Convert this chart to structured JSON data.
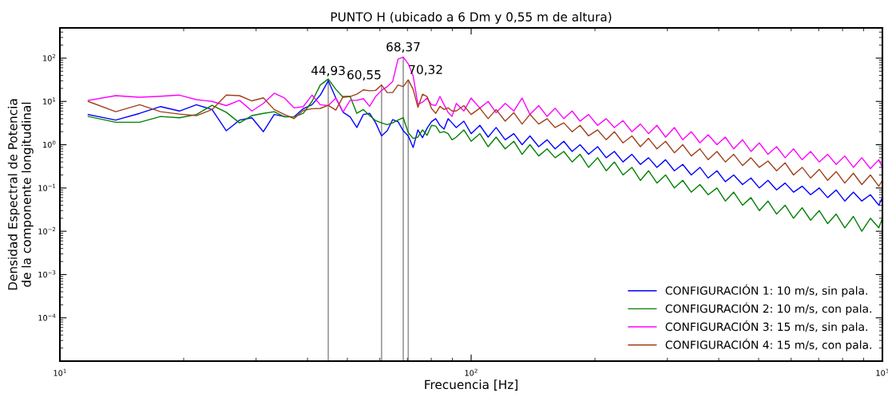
{
  "chart_data": {
    "type": "line",
    "title": "PUNTO H (ubicado a 6 Dm y 0,55 m de altura)",
    "xlabel": "Frecuencia [Hz]",
    "ylabel": "Densidad Espectral de Potencia\nde la componente longitudinal",
    "log": "xy",
    "grid": false,
    "legend": "bottom right",
    "marker": "none",
    "line_style": "solid",
    "xlim": [
      10,
      1000
    ],
    "ylim": [
      1e-05,
      500
    ],
    "xticks": [
      {
        "value": 10,
        "label": "10$^{1}$"
      },
      {
        "value": 100,
        "label": "10$^{2}$"
      },
      {
        "value": 1000,
        "label": "10$^{3}$"
      }
    ],
    "yticks": [
      {
        "value": 0.0001,
        "label": "10$^{−4}$"
      },
      {
        "value": 0.001,
        "label": "10$^{−3}$"
      },
      {
        "value": 0.01,
        "label": "10$^{−2}$"
      },
      {
        "value": 0.1,
        "label": "10$^{−1}$"
      },
      {
        "value": 1,
        "label": "10$^{0}$"
      },
      {
        "value": 10,
        "label": "10$^{1}$"
      },
      {
        "value": 100,
        "label": "10$^{2}$"
      }
    ],
    "x": [
      11.72,
      13.67,
      15.63,
      17.58,
      19.53,
      21.48,
      23.44,
      25.39,
      27.34,
      29.3,
      31.25,
      33.2,
      35.16,
      37.11,
      39.06,
      41.02,
      42.97,
      44.93,
      46.88,
      48.83,
      50.78,
      52.73,
      54.69,
      56.64,
      58.59,
      60.55,
      62.5,
      64.45,
      66.41,
      68.37,
      70.32,
      72.27,
      74.22,
      76.17,
      78.13,
      80.08,
      82.03,
      83.98,
      85.94,
      87.89,
      89.84,
      92,
      96,
      100,
      105,
      110,
      115,
      121,
      127,
      133,
      139,
      146,
      153,
      160,
      168,
      176,
      184,
      193,
      203,
      213,
      223,
      234,
      246,
      258,
      270,
      283,
      297,
      312,
      327,
      343,
      360,
      377,
      396,
      415,
      435,
      457,
      479,
      502,
      527,
      553,
      580,
      608,
      638,
      669,
      702,
      736,
      772,
      810,
      850,
      891,
      935,
      980,
      1000
    ],
    "series": [
      {
        "name": "CONFIGURACIÓN 1: 10 m/s, sin pala.",
        "color": "#0000ff",
        "values": [
          5,
          3.7,
          5.3,
          7.6,
          6,
          8.4,
          6.5,
          2.1,
          3.7,
          4.2,
          2,
          5,
          4.5,
          4.4,
          6.8,
          8.4,
          14,
          30,
          12,
          5.6,
          4.4,
          2.5,
          5,
          5.3,
          3.2,
          1.6,
          2.1,
          3.8,
          3.4,
          2.1,
          1.6,
          0.86,
          2.2,
          1.45,
          2.4,
          3.4,
          4,
          2.8,
          2.3,
          4,
          3.2,
          2.5,
          3.5,
          1.8,
          2.8,
          1.5,
          2.5,
          1.3,
          1.8,
          1,
          1.6,
          0.9,
          1.3,
          0.8,
          1.2,
          0.7,
          1,
          0.6,
          0.9,
          0.5,
          0.7,
          0.4,
          0.6,
          0.35,
          0.5,
          0.3,
          0.45,
          0.25,
          0.35,
          0.2,
          0.3,
          0.17,
          0.25,
          0.14,
          0.2,
          0.12,
          0.17,
          0.1,
          0.15,
          0.09,
          0.13,
          0.08,
          0.11,
          0.07,
          0.1,
          0.06,
          0.09,
          0.05,
          0.08,
          0.05,
          0.07,
          0.04,
          0.06
        ]
      },
      {
        "name": "CONFIGURACIÓN 2: 10 m/s, con pala.",
        "color": "#008000",
        "values": [
          4.5,
          3.3,
          3.3,
          4.5,
          4.2,
          5,
          8.1,
          5.6,
          3.2,
          4.7,
          5.3,
          5.8,
          4.4,
          4.4,
          5.3,
          10,
          24,
          33,
          19,
          12.5,
          13,
          5.3,
          6.5,
          4.7,
          3.6,
          3.2,
          2.9,
          3.2,
          3.7,
          4.2,
          1.9,
          1.4,
          1.5,
          2.2,
          1.65,
          2.8,
          2.7,
          1.9,
          2,
          1.8,
          1.3,
          1.5,
          2.2,
          1.2,
          1.8,
          0.9,
          1.5,
          0.8,
          1.2,
          0.6,
          1,
          0.55,
          0.8,
          0.5,
          0.7,
          0.4,
          0.6,
          0.3,
          0.5,
          0.25,
          0.4,
          0.2,
          0.3,
          0.15,
          0.25,
          0.13,
          0.2,
          0.1,
          0.15,
          0.08,
          0.12,
          0.07,
          0.1,
          0.05,
          0.08,
          0.04,
          0.06,
          0.03,
          0.05,
          0.025,
          0.04,
          0.02,
          0.035,
          0.018,
          0.03,
          0.015,
          0.025,
          0.012,
          0.022,
          0.01,
          0.02,
          0.012,
          0.02
        ]
      },
      {
        "name": "CONFIGURACIÓN 3: 15 m/s, sin pala.",
        "color": "#ff00ff",
        "values": [
          10.6,
          13.6,
          12.5,
          13.2,
          14,
          11,
          10,
          8,
          10.6,
          6,
          9,
          15.5,
          12,
          7.1,
          7.6,
          14,
          8.4,
          8,
          12,
          5.7,
          10.6,
          10.6,
          11.6,
          7.7,
          13,
          18,
          22,
          29,
          95,
          106,
          74,
          39,
          8.6,
          9.6,
          12,
          8.4,
          8.1,
          13,
          8.4,
          5.6,
          4.5,
          9,
          6,
          12,
          7,
          10,
          5.5,
          9,
          6,
          12,
          5,
          8,
          4.5,
          7,
          4,
          6,
          3.5,
          5,
          2.8,
          4,
          2.5,
          3.6,
          2,
          3,
          1.8,
          2.8,
          1.5,
          2.5,
          1.3,
          2,
          1.1,
          1.7,
          1,
          1.5,
          0.8,
          1.3,
          0.7,
          1.1,
          0.6,
          0.9,
          0.5,
          0.8,
          0.45,
          0.7,
          0.4,
          0.6,
          0.35,
          0.55,
          0.3,
          0.5,
          0.28,
          0.45,
          0.3
        ]
      },
      {
        "name": "CONFIGURACIÓN 4: 15 m/s, con pala.",
        "color": "#a0401a",
        "values": [
          10,
          5.8,
          8.4,
          5.8,
          5.1,
          4.7,
          6.5,
          14,
          13.6,
          10.3,
          12.1,
          6.5,
          5,
          4,
          6.2,
          6.8,
          6.9,
          8.1,
          6.3,
          13,
          13,
          14.7,
          18.5,
          17.6,
          18,
          24,
          16,
          16,
          24,
          22,
          31.6,
          19,
          7.3,
          14.7,
          13,
          6.9,
          5.3,
          7.7,
          6.5,
          7.1,
          6,
          6,
          8,
          5,
          7,
          4,
          6.5,
          3.5,
          5.5,
          3,
          5,
          3,
          4,
          2.5,
          3.2,
          2,
          2.8,
          1.6,
          2.2,
          1.3,
          2,
          1.1,
          1.6,
          0.9,
          1.4,
          0.8,
          1.2,
          0.65,
          1,
          0.55,
          0.8,
          0.45,
          0.7,
          0.4,
          0.6,
          0.33,
          0.5,
          0.3,
          0.42,
          0.25,
          0.38,
          0.2,
          0.3,
          0.17,
          0.27,
          0.15,
          0.24,
          0.13,
          0.22,
          0.12,
          0.2,
          0.11,
          0.15
        ]
      }
    ],
    "annotations": [
      {
        "text": "44,93",
        "x": 44.93,
        "y": 30
      },
      {
        "text": "60,55",
        "x": 60.55,
        "y": 24
      },
      {
        "text": "68,37",
        "x": 68.37,
        "y": 106
      },
      {
        "text": "70,32",
        "x": 70.32,
        "y": 31.6
      }
    ]
  }
}
